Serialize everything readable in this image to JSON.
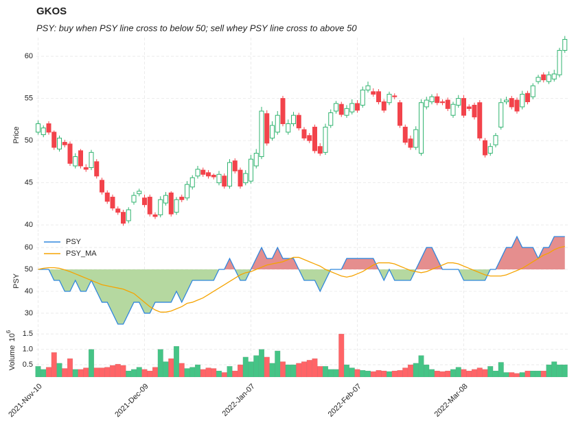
{
  "chart_data": [
    {
      "type": "candlestick",
      "title": "GKOS",
      "subtitle": "PSY: buy when PSY line cross to below 50; sell whey PSY line cross to above 50",
      "ylabel": "Price",
      "ylim": [
        39.2,
        62.2
      ],
      "yticks": [
        40,
        45,
        50,
        55,
        60
      ],
      "grid": true,
      "up_color": "#2fb36f",
      "down_color": "#f2434b",
      "open": [
        51.0,
        50.7,
        52.0,
        51.0,
        49.0,
        49.8,
        49.6,
        47.0,
        48.8,
        46.8,
        46.8,
        47.5,
        45.3,
        43.8,
        43.3,
        41.9,
        41.5,
        40.5,
        42.7,
        43.7,
        43.2,
        43.3,
        41.2,
        41.2,
        42.6,
        43.8,
        41.5,
        43.3,
        43.2,
        44.5,
        45.8,
        46.5,
        46.2,
        45.9,
        45.0,
        45.8,
        44.6,
        47.6,
        46.5,
        45.0,
        45.2,
        47.0,
        48.1,
        53.2,
        50.3,
        51.0,
        55.0,
        51.0,
        52.0,
        53.0,
        51.3,
        50.6,
        51.6,
        49.3,
        48.6,
        51.8,
        53.5,
        54.3,
        53.0,
        53.4,
        54.4,
        54.2,
        56.0,
        55.8,
        55.8,
        54.6,
        54.5,
        55.3,
        54.5,
        51.6,
        50.2,
        49.2,
        48.5,
        54.0,
        54.6,
        55.2,
        54.6,
        54.8,
        53.0,
        54.2,
        55.0,
        54.0,
        54.2,
        54.5,
        50.0,
        48.5,
        49.5,
        51.6,
        54.6,
        55.0,
        54.8,
        54.0,
        55.6,
        55.2,
        57.0,
        57.8,
        57.0,
        57.3,
        57.8,
        60.7
      ],
      "high": [
        52.4,
        51.8,
        52.3,
        51.2,
        50.6,
        50.1,
        49.9,
        48.5,
        49.0,
        47.2,
        48.9,
        47.8,
        45.6,
        44.1,
        43.6,
        42.2,
        41.8,
        42.1,
        43.9,
        44.3,
        43.6,
        43.6,
        41.5,
        43.4,
        43.9,
        44.0,
        43.3,
        43.6,
        45.2,
        45.9,
        47.0,
        46.8,
        46.5,
        46.1,
        46.4,
        46.1,
        47.8,
        47.9,
        46.8,
        46.5,
        48.3,
        49.0,
        54.0,
        53.6,
        52.3,
        53.5,
        55.3,
        52.5,
        53.4,
        53.3,
        51.6,
        50.9,
        51.9,
        49.7,
        52.0,
        53.7,
        54.7,
        54.6,
        54.2,
        54.9,
        54.8,
        56.4,
        57.0,
        56.2,
        56.1,
        54.9,
        55.8,
        55.6,
        54.8,
        51.9,
        50.6,
        51.7,
        54.9,
        55.2,
        55.5,
        55.6,
        54.9,
        55.1,
        54.6,
        55.4,
        55.4,
        54.3,
        54.5,
        54.8,
        50.3,
        49.7,
        50.9,
        55.0,
        55.2,
        55.3,
        55.1,
        55.9,
        55.9,
        56.8,
        57.8,
        58.1,
        58.2,
        58.4,
        61.0,
        62.4
      ],
      "low": [
        50.7,
        50.4,
        50.7,
        48.9,
        48.7,
        49.2,
        47.0,
        46.7,
        46.7,
        46.3,
        46.5,
        45.5,
        43.6,
        42.5,
        41.7,
        41.2,
        39.9,
        40.2,
        42.4,
        43.4,
        42.1,
        41.0,
        40.7,
        40.9,
        42.3,
        41.0,
        41.2,
        42.7,
        42.9,
        44.2,
        45.5,
        45.7,
        45.5,
        45.4,
        44.7,
        44.3,
        44.3,
        46.1,
        44.3,
        44.7,
        44.9,
        46.7,
        47.8,
        49.4,
        50.0,
        50.7,
        51.7,
        50.7,
        51.7,
        51.2,
        50.0,
        49.7,
        48.5,
        48.2,
        48.3,
        51.5,
        53.2,
        52.8,
        52.7,
        53.1,
        53.3,
        53.9,
        55.7,
        55.2,
        54.3,
        53.3,
        54.2,
        54.9,
        51.5,
        49.5,
        48.9,
        48.9,
        48.2,
        53.7,
        54.3,
        54.2,
        54.2,
        53.5,
        52.7,
        53.9,
        52.7,
        53.5,
        52.5,
        50.0,
        48.0,
        48.2,
        49.2,
        51.3,
        54.3,
        53.7,
        53.2,
        53.7,
        54.3,
        54.9,
        56.7,
        56.9,
        56.7,
        57.0,
        57.5,
        60.4
      ],
      "close": [
        52.0,
        51.5,
        51.0,
        49.2,
        50.3,
        49.5,
        47.3,
        48.1,
        47.0,
        46.6,
        48.6,
        45.8,
        43.9,
        42.8,
        42.0,
        41.5,
        40.2,
        41.8,
        43.5,
        44.0,
        42.4,
        41.3,
        41.0,
        43.0,
        43.5,
        41.3,
        43.0,
        43.0,
        44.8,
        45.6,
        46.6,
        46.0,
        45.8,
        45.7,
        46.0,
        44.6,
        47.4,
        46.4,
        44.6,
        46.1,
        47.8,
        48.5,
        53.5,
        49.7,
        51.8,
        53.0,
        52.0,
        52.0,
        53.0,
        51.5,
        50.3,
        50.0,
        48.8,
        48.5,
        51.6,
        53.3,
        54.4,
        53.1,
        53.8,
        54.4,
        53.6,
        56.0,
        56.5,
        55.5,
        54.6,
        53.6,
        55.5,
        55.2,
        51.8,
        49.8,
        49.2,
        51.3,
        54.5,
        54.8,
        55.2,
        54.5,
        54.5,
        53.8,
        54.3,
        55.0,
        53.0,
        53.8,
        52.8,
        50.3,
        48.3,
        49.3,
        50.6,
        54.5,
        54.8,
        54.0,
        53.5,
        55.5,
        54.6,
        56.5,
        57.5,
        57.2,
        57.8,
        57.9,
        60.7,
        62.0
      ]
    },
    {
      "type": "line",
      "ylabel": "PSY",
      "ylim": [
        23.4,
        66.6
      ],
      "yticks": [
        30,
        40,
        50,
        60
      ],
      "grid": true,
      "legend": "upper left",
      "fill_baseline": 50,
      "fill_above_color": "#e58e8e",
      "fill_below_color": "#b5d8a0",
      "series": [
        {
          "name": "PSY",
          "color": "#2f86dd",
          "values": [
            50,
            50,
            50,
            45,
            45,
            40,
            40,
            45,
            40,
            40,
            45,
            40,
            35,
            35,
            30,
            25,
            25,
            30,
            35,
            35,
            30,
            30,
            35,
            35,
            35,
            35,
            40,
            35,
            40,
            45,
            45,
            45,
            45,
            45,
            50,
            50,
            55,
            50,
            45,
            45,
            50,
            55,
            60,
            55,
            55,
            60,
            55,
            55,
            55,
            50,
            45,
            45,
            45,
            40,
            45,
            50,
            50,
            50,
            55,
            55,
            55,
            55,
            55,
            55,
            50,
            45,
            50,
            45,
            45,
            45,
            45,
            50,
            55,
            60,
            60,
            55,
            50,
            50,
            50,
            50,
            45,
            45,
            45,
            45,
            45,
            50,
            50,
            55,
            60,
            60,
            65,
            60,
            60,
            60,
            55,
            60,
            60,
            65,
            65,
            65
          ]
        },
        {
          "name": "PSY_MA",
          "color": "#f5a300",
          "values": [
            50,
            50.5,
            50.8,
            50.8,
            50.5,
            49.8,
            49,
            48,
            47,
            46,
            45,
            44,
            43,
            42.5,
            42,
            41.5,
            41,
            40,
            39,
            37,
            35,
            33,
            31.5,
            30.5,
            30.5,
            31,
            32,
            33,
            34.5,
            35,
            36,
            37,
            38.5,
            40,
            41.5,
            43,
            44.5,
            46,
            47.5,
            48.5,
            49,
            50,
            51,
            52,
            52.5,
            53,
            53.5,
            54.5,
            55.5,
            55.5,
            54.5,
            53.5,
            52.5,
            51.5,
            50,
            49,
            48,
            47,
            46.5,
            47,
            48,
            49,
            50.5,
            52,
            53,
            53,
            53,
            52.5,
            51.5,
            50.5,
            49.5,
            49,
            48.5,
            49,
            50,
            51,
            52,
            53,
            53,
            52.5,
            51.5,
            50.5,
            49.5,
            48.5,
            47.5,
            47,
            47,
            47,
            47.5,
            48.5,
            49.5,
            50.5,
            52,
            53.5,
            55,
            56.5,
            57.5,
            59,
            60,
            60.5
          ]
        }
      ]
    },
    {
      "type": "bar",
      "ylabel": "Volume",
      "offset_text": {
        "base": "10",
        "exponent": "6"
      },
      "ylim": [
        0.1,
        1.66
      ],
      "yticks": [
        0.5,
        {
          "value": 1,
          "label": "1.0"
        },
        1.5
      ],
      "grid": true,
      "up_color": "#45c486",
      "down_color": "#ff6467",
      "categories": [
        "2021-Nov-10",
        null,
        null,
        null,
        null,
        null,
        null,
        null,
        null,
        null,
        null,
        null,
        null,
        null,
        null,
        null,
        null,
        null,
        null,
        null,
        "2021-Dec-09",
        null,
        null,
        null,
        null,
        null,
        null,
        null,
        null,
        null,
        null,
        null,
        null,
        null,
        null,
        null,
        null,
        null,
        null,
        null,
        "2022-Jan-07",
        null,
        null,
        null,
        null,
        null,
        null,
        null,
        null,
        null,
        null,
        null,
        null,
        null,
        null,
        null,
        null,
        null,
        null,
        null,
        "2022-Feb-07",
        null,
        null,
        null,
        null,
        null,
        null,
        null,
        null,
        null,
        null,
        null,
        null,
        null,
        null,
        null,
        null,
        null,
        null,
        null,
        "2022-Mar-08",
        null,
        null,
        null,
        null,
        null,
        null,
        null,
        null,
        null,
        null,
        null,
        null,
        null,
        null,
        null,
        null,
        null,
        null,
        null
      ],
      "values": [
        0.45,
        0.35,
        0.42,
        0.9,
        0.55,
        0.38,
        0.7,
        0.35,
        0.35,
        0.4,
        1.0,
        0.4,
        0.4,
        0.42,
        0.48,
        0.52,
        0.48,
        0.3,
        0.35,
        0.42,
        0.35,
        0.3,
        0.42,
        1.0,
        0.6,
        0.7,
        1.1,
        0.55,
        0.38,
        0.42,
        0.5,
        0.35,
        0.4,
        0.38,
        0.3,
        0.25,
        0.45,
        0.3,
        0.5,
        0.75,
        0.6,
        0.8,
        1.0,
        0.75,
        0.55,
        0.95,
        0.6,
        0.5,
        0.5,
        0.55,
        0.6,
        0.65,
        0.7,
        0.45,
        0.45,
        0.35,
        0.35,
        1.5,
        0.5,
        0.4,
        0.35,
        0.32,
        0.3,
        0.28,
        0.32,
        0.3,
        0.28,
        0.3,
        0.32,
        0.4,
        0.5,
        0.55,
        0.8,
        0.5,
        0.35,
        0.3,
        0.28,
        0.3,
        0.35,
        0.42,
        0.35,
        0.3,
        0.35,
        0.4,
        0.35,
        0.45,
        0.3,
        0.58,
        0.25,
        0.25,
        0.22,
        0.25,
        0.3,
        0.3,
        0.3,
        0.3,
        0.5,
        0.6,
        0.5,
        0.5
      ]
    }
  ]
}
